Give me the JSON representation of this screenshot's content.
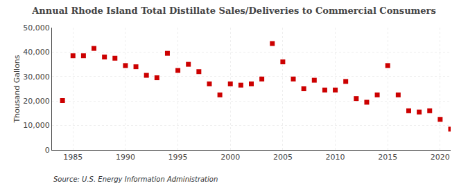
{
  "chart_data": {
    "type": "scatter",
    "title": "Annual Rhode Island Total Distillate Sales/Deliveries to Commercial Consumers",
    "ylabel": "Thousand Gallons",
    "annotations": [
      "Source: U.S. Energy Information Administration"
    ],
    "x": [
      1984,
      1985,
      1986,
      1987,
      1988,
      1989,
      1990,
      1991,
      1992,
      1993,
      1994,
      1995,
      1996,
      1997,
      1998,
      1999,
      2000,
      2001,
      2002,
      2003,
      2004,
      2005,
      2006,
      2007,
      2008,
      2009,
      2010,
      2011,
      2012,
      2013,
      2014,
      2015,
      2016,
      2017,
      2018,
      2019,
      2020,
      2021
    ],
    "values": [
      20200,
      38500,
      38500,
      41500,
      38000,
      37500,
      34500,
      34000,
      30500,
      29500,
      39500,
      32500,
      35000,
      32000,
      27000,
      22500,
      27000,
      26500,
      27000,
      29000,
      43500,
      36000,
      29000,
      25000,
      28500,
      24500,
      24500,
      28000,
      21000,
      19500,
      22500,
      34500,
      22500,
      16000,
      15500,
      16000,
      12500,
      8500
    ],
    "color": "#cc0000",
    "marker": "square",
    "xlim": [
      1983,
      2021
    ],
    "xticks": [
      1985,
      1990,
      1995,
      2000,
      2005,
      2010,
      2015,
      2020
    ],
    "ylim": [
      0,
      50000
    ],
    "yticks": [
      0,
      {
        "value": 10000,
        "label": "10,000"
      },
      {
        "value": 20000,
        "label": "20,000"
      },
      {
        "value": 30000,
        "label": "30,000"
      },
      {
        "value": 40000,
        "label": "40,000"
      },
      {
        "value": 50000,
        "label": "50,000"
      }
    ],
    "grid": true
  }
}
